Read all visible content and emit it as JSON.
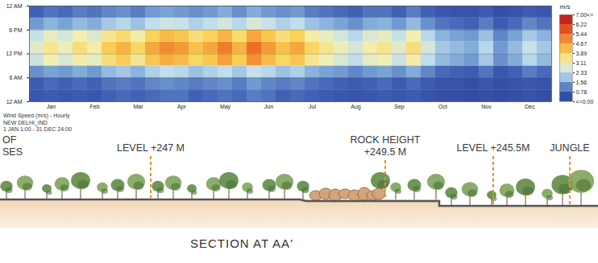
{
  "chart_data": {
    "type": "heatmap",
    "title": "Wind Speed (m/s) - Hourly",
    "subtitle": [
      "NEW DELHI_IND",
      "1 JAN 1:00 - 31 DEC 24:00"
    ],
    "categories": [
      null,
      "Jan",
      null,
      null,
      "Feb",
      null,
      null,
      "Mar",
      null,
      null,
      "Apr",
      null,
      null,
      "May",
      null,
      null,
      "Jun",
      null,
      null,
      "Jul",
      null,
      null,
      "Aug",
      null,
      null,
      "Sep",
      null,
      null,
      "Oct",
      null,
      null,
      "Nov",
      null,
      null,
      "Dec",
      null
    ],
    "hour_edges": [
      0,
      3,
      6,
      9,
      12,
      15,
      18,
      21,
      24
    ],
    "ylim": [
      0,
      24
    ],
    "yticks": [
      {
        "value": 0,
        "label": "12 AM"
      },
      {
        "value": 6,
        "label": "6 AM"
      },
      {
        "value": 12,
        "label": "12 PM"
      },
      {
        "value": 18,
        "label": "6 PM"
      },
      {
        "value": 24,
        "label": "12 AM"
      }
    ],
    "grid": true,
    "cells": [
      [
        0.6,
        0.7,
        0.6,
        0.7,
        0.6,
        0.8,
        0.9,
        0.8,
        0.9,
        1.0,
        1.0,
        0.8,
        0.9,
        1.0,
        0.9,
        1.1,
        1.0,
        0.8,
        0.9,
        0.8,
        0.7,
        0.6,
        0.5,
        0.6,
        0.7,
        0.6,
        0.7,
        0.5,
        0.4,
        0.4,
        0.3,
        0.4,
        0.3,
        0.4,
        0.5,
        0.4
      ],
      [
        0.7,
        0.9,
        0.8,
        0.9,
        0.8,
        1.0,
        1.1,
        1.0,
        1.2,
        1.3,
        1.2,
        1.1,
        1.2,
        1.3,
        1.1,
        1.4,
        1.2,
        1.1,
        1.2,
        1.0,
        0.9,
        0.8,
        0.7,
        0.8,
        0.9,
        0.7,
        0.9,
        0.7,
        0.5,
        0.5,
        0.4,
        0.6,
        0.4,
        0.5,
        0.6,
        0.5
      ],
      [
        1.3,
        1.5,
        1.4,
        1.6,
        1.4,
        1.8,
        2.0,
        1.7,
        2.1,
        2.3,
        2.2,
        1.9,
        2.1,
        2.3,
        2.0,
        2.4,
        2.2,
        1.9,
        2.1,
        1.7,
        1.5,
        1.4,
        1.2,
        1.4,
        1.5,
        1.3,
        1.6,
        1.2,
        0.9,
        0.8,
        0.7,
        1.0,
        0.6,
        0.8,
        1.1,
        0.9
      ],
      [
        2.5,
        3.1,
        2.7,
        3.2,
        2.9,
        3.6,
        4.0,
        3.4,
        4.1,
        4.5,
        4.3,
        3.8,
        4.1,
        4.7,
        4.0,
        4.9,
        4.3,
        3.8,
        4.1,
        3.4,
        3.1,
        2.7,
        2.3,
        2.9,
        3.1,
        2.5,
        3.2,
        2.3,
        1.8,
        1.6,
        1.4,
        2.0,
        1.3,
        1.6,
        2.2,
        1.8
      ],
      [
        2.8,
        3.4,
        3.0,
        3.6,
        3.2,
        4.0,
        4.4,
        3.8,
        4.6,
        5.0,
        4.8,
        4.2,
        4.6,
        5.2,
        4.4,
        5.4,
        4.8,
        4.2,
        4.6,
        3.8,
        3.4,
        3.0,
        2.6,
        3.2,
        3.4,
        2.8,
        3.6,
        2.6,
        2.0,
        1.8,
        1.6,
        2.2,
        1.4,
        1.8,
        2.4,
        2.0
      ],
      [
        2.4,
        2.9,
        2.6,
        3.1,
        2.7,
        3.4,
        3.7,
        3.2,
        3.9,
        4.3,
        4.1,
        3.6,
        3.9,
        4.4,
        3.7,
        4.6,
        4.1,
        3.6,
        3.9,
        3.2,
        2.9,
        2.6,
        2.2,
        2.7,
        2.9,
        2.4,
        3.1,
        2.2,
        1.7,
        1.5,
        1.4,
        1.9,
        1.2,
        1.5,
        2.0,
        1.7
      ],
      [
        1.4,
        1.7,
        1.5,
        1.8,
        1.6,
        2.0,
        2.2,
        1.9,
        2.3,
        2.5,
        2.4,
        2.1,
        2.3,
        2.6,
        2.2,
        2.7,
        2.4,
        2.1,
        2.3,
        1.9,
        1.7,
        1.5,
        1.3,
        1.6,
        1.7,
        1.4,
        1.8,
        1.3,
        1.0,
        0.9,
        0.8,
        1.1,
        0.7,
        0.9,
        1.2,
        1.0
      ],
      [
        0.8,
        1.0,
        0.9,
        1.1,
        1.0,
        1.2,
        1.3,
        1.1,
        1.4,
        1.5,
        1.4,
        1.3,
        1.4,
        1.6,
        1.3,
        1.6,
        1.4,
        1.3,
        1.4,
        1.1,
        1.0,
        0.9,
        0.8,
        1.0,
        1.0,
        0.8,
        1.1,
        0.8,
        0.6,
        0.5,
        0.5,
        0.7,
        0.4,
        0.5,
        0.7,
        0.6
      ]
    ],
    "colorbar": {
      "label": "m/s",
      "range": [
        0,
        7
      ],
      "ticks": [
        {
          "value": 7,
          "label": "7.00<="
        },
        6.22,
        5.44,
        4.67,
        3.89,
        3.11,
        2.33,
        1.56,
        0.78,
        {
          "value": 0,
          "label": "<=0.00"
        }
      ]
    }
  },
  "section": {
    "title": "SECTION AT AA'",
    "markers": [
      {
        "lines": [
          "OF",
          "SES"
        ]
      },
      {
        "lines": [
          "LEVEL +247 M"
        ]
      },
      {
        "lines": [
          "ROCK HEIGHT",
          "+249.5 M"
        ]
      },
      {
        "lines": [
          "LEVEL +245.5M"
        ]
      },
      {
        "lines": [
          "JUNGLE"
        ]
      }
    ]
  }
}
